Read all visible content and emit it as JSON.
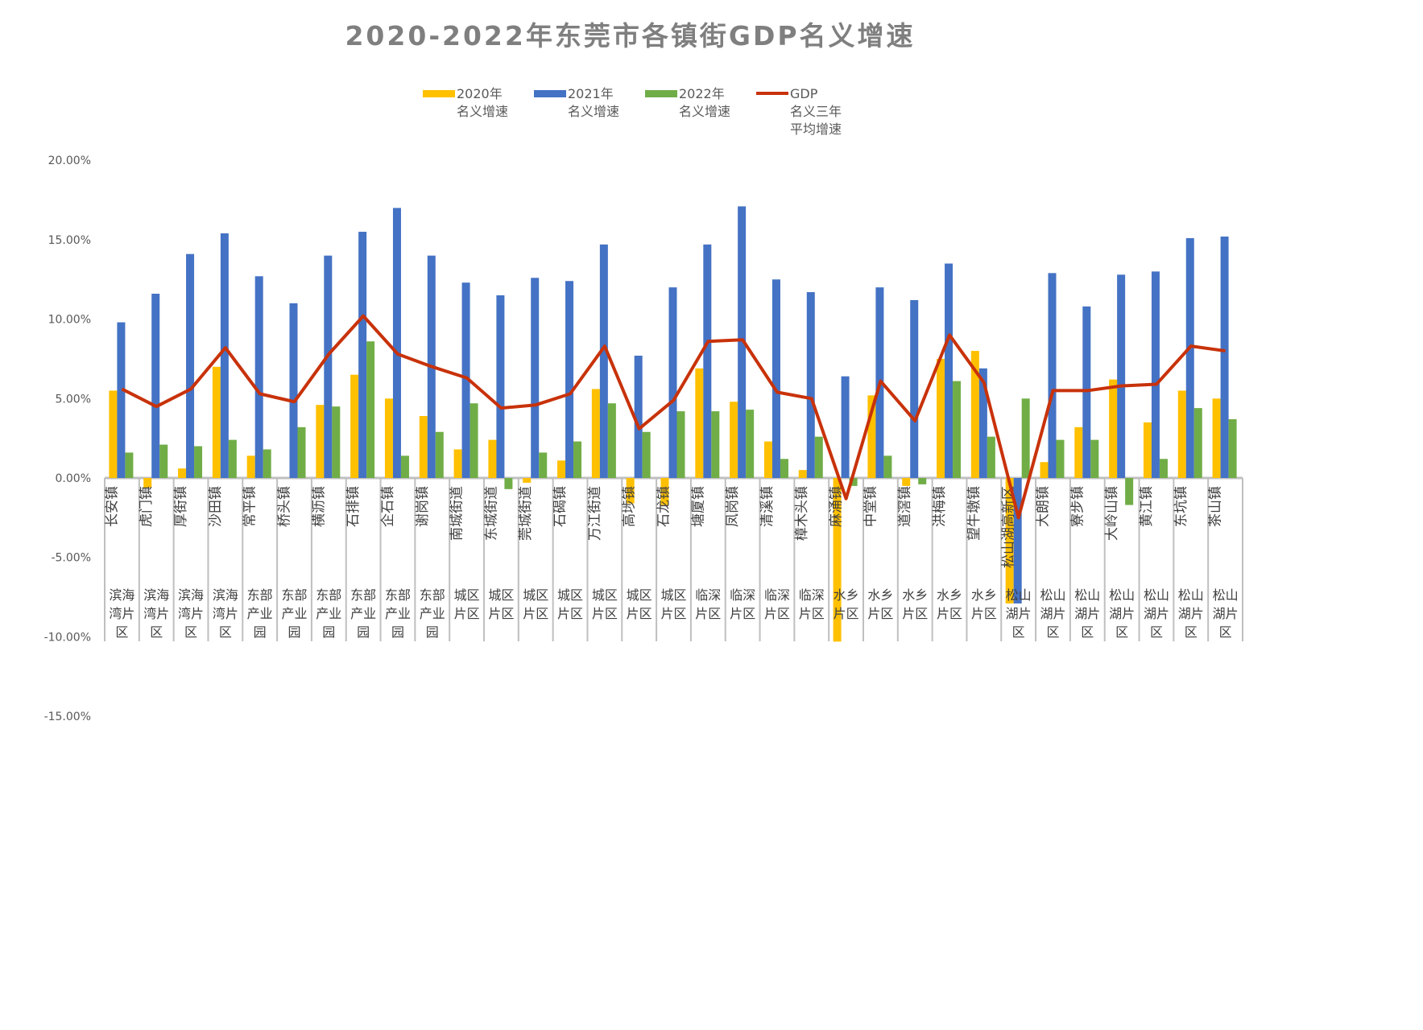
{
  "chart_data": {
    "type": "bar",
    "title": "2020-2022年东莞市各镇街GDP名义增速",
    "ylim": [
      -15,
      20
    ],
    "yticks": [
      "20.00%",
      "15.00%",
      "10.00%",
      "5.00%",
      "0.00%",
      "-5.00%",
      "-10.00%",
      "-15.00%"
    ],
    "legend_position": "top",
    "categories": [
      "长安镇",
      "虎门镇",
      "厚街镇",
      "沙田镇",
      "常平镇",
      "桥头镇",
      "横沥镇",
      "石排镇",
      "企石镇",
      "谢岗镇",
      "南城街道",
      "东城街道",
      "莞城街道",
      "石碣镇",
      "万江街道",
      "高埗镇",
      "石龙镇",
      "塘厦镇",
      "凤岗镇",
      "清溪镇",
      "樟木头镇",
      "麻涌镇",
      "中堂镇",
      "道滘镇",
      "洪梅镇",
      "望牛墩镇",
      "松山湖高新区",
      "大朗镇",
      "寮步镇",
      "大岭山镇",
      "黄江镇",
      "东坑镇",
      "茶山镇"
    ],
    "groups": [
      "滨海湾片区",
      "滨海湾片区",
      "滨海湾片区",
      "滨海湾片区",
      "东部产业园",
      "东部产业园",
      "东部产业园",
      "东部产业园",
      "东部产业园",
      "东部产业园",
      "城区片区",
      "城区片区",
      "城区片区",
      "城区片区",
      "城区片区",
      "城区片区",
      "城区片区",
      "临深片区",
      "临深片区",
      "临深片区",
      "临深片区",
      "水乡片区",
      "水乡片区",
      "水乡片区",
      "水乡片区",
      "水乡片区",
      "松山湖片区",
      "松山湖片区",
      "松山湖片区",
      "松山湖片区",
      "松山湖片区",
      "松山湖片区",
      "松山湖片区"
    ],
    "series": [
      {
        "name": "2020年\n名义增速",
        "type": "bar",
        "color": "#FFC000",
        "values": [
          5.5,
          -0.6,
          0.6,
          7.0,
          1.4,
          0,
          4.6,
          6.5,
          5.0,
          3.9,
          1.8,
          2.4,
          -0.3,
          1.1,
          5.6,
          -1.6,
          -1.7,
          6.9,
          4.8,
          2.3,
          0.5,
          -10.3,
          5.2,
          -0.5,
          7.5,
          8.0,
          -7.9,
          1.0,
          3.2,
          6.2,
          3.5,
          5.5,
          5.0
        ]
      },
      {
        "name": "2021年\n名义增速",
        "type": "bar",
        "color": "#4472C4",
        "values": [
          9.8,
          11.6,
          14.1,
          15.4,
          12.7,
          11.0,
          14.0,
          15.5,
          17.0,
          14.0,
          12.3,
          11.5,
          12.6,
          12.4,
          14.7,
          7.7,
          12.0,
          14.7,
          17.1,
          12.5,
          11.7,
          6.4,
          12.0,
          11.2,
          13.5,
          6.9,
          -7.9,
          12.9,
          10.8,
          12.8,
          13.0,
          15.1,
          15.2
        ]
      },
      {
        "name": "2022年\n名义增速",
        "type": "bar",
        "color": "#70AD47",
        "values": [
          1.6,
          2.1,
          2.0,
          2.4,
          1.8,
          3.2,
          4.5,
          8.6,
          1.4,
          2.9,
          4.7,
          -0.7,
          1.6,
          2.3,
          4.7,
          2.9,
          4.2,
          4.2,
          4.3,
          1.2,
          2.6,
          -0.5,
          1.4,
          -0.4,
          6.1,
          2.6,
          5.0,
          2.4,
          2.4,
          -1.7,
          1.2,
          4.4,
          3.7
        ]
      },
      {
        "name": "GDP\n名义三年\n平均增速",
        "type": "line",
        "color": "#C8320A",
        "values": [
          5.6,
          4.5,
          5.6,
          8.2,
          5.3,
          4.8,
          7.8,
          10.2,
          7.8,
          7.0,
          6.3,
          4.4,
          4.6,
          5.3,
          8.3,
          3.1,
          4.9,
          8.6,
          8.7,
          5.4,
          5.0,
          -1.3,
          6.1,
          3.6,
          9.0,
          6.0,
          -2.5,
          5.5,
          5.5,
          5.8,
          5.9,
          8.3,
          8.0
        ]
      }
    ]
  }
}
